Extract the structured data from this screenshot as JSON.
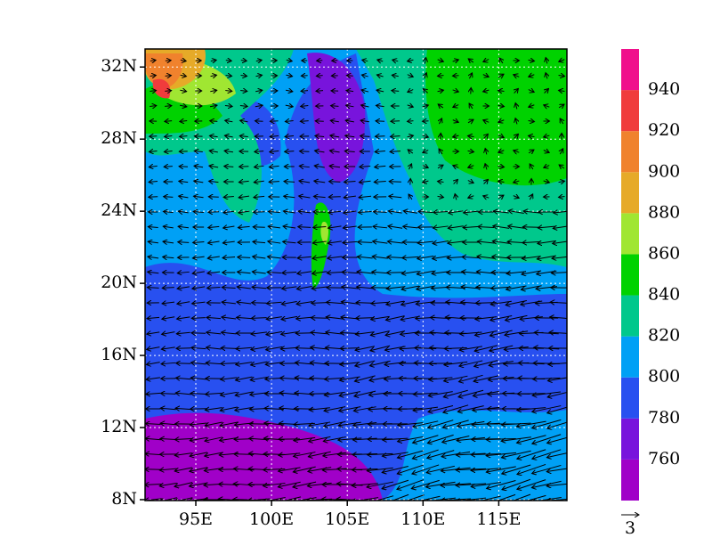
{
  "map": {
    "type": "contour-vector",
    "xlim": [
      91.65,
      119.5
    ],
    "ylim": [
      7.95,
      33
    ],
    "lat_ticks": [
      {
        "value": 32,
        "label": "32N"
      },
      {
        "value": 28,
        "label": "28N"
      },
      {
        "value": 24,
        "label": "24N"
      },
      {
        "value": 20,
        "label": "20N"
      },
      {
        "value": 16,
        "label": "16N"
      },
      {
        "value": 12,
        "label": "12N"
      },
      {
        "value": 8,
        "label": "8N"
      }
    ],
    "lon_ticks": [
      {
        "value": 95,
        "label": "95E"
      },
      {
        "value": 100,
        "label": "100E"
      },
      {
        "value": 105,
        "label": "105E"
      },
      {
        "value": 110,
        "label": "110E"
      },
      {
        "value": 115,
        "label": "115E"
      }
    ],
    "colorbar": {
      "levels": [
        760,
        780,
        800,
        820,
        840,
        860,
        880,
        900,
        920,
        940
      ],
      "colors": [
        "#a000c8",
        "#7814dc",
        "#2850f0",
        "#00a0f5",
        "#00c88c",
        "#00d200",
        "#a0e632",
        "#e6aa28",
        "#f0822d",
        "#f03c3c",
        "#f0108c"
      ]
    },
    "vector_reference": "3"
  }
}
